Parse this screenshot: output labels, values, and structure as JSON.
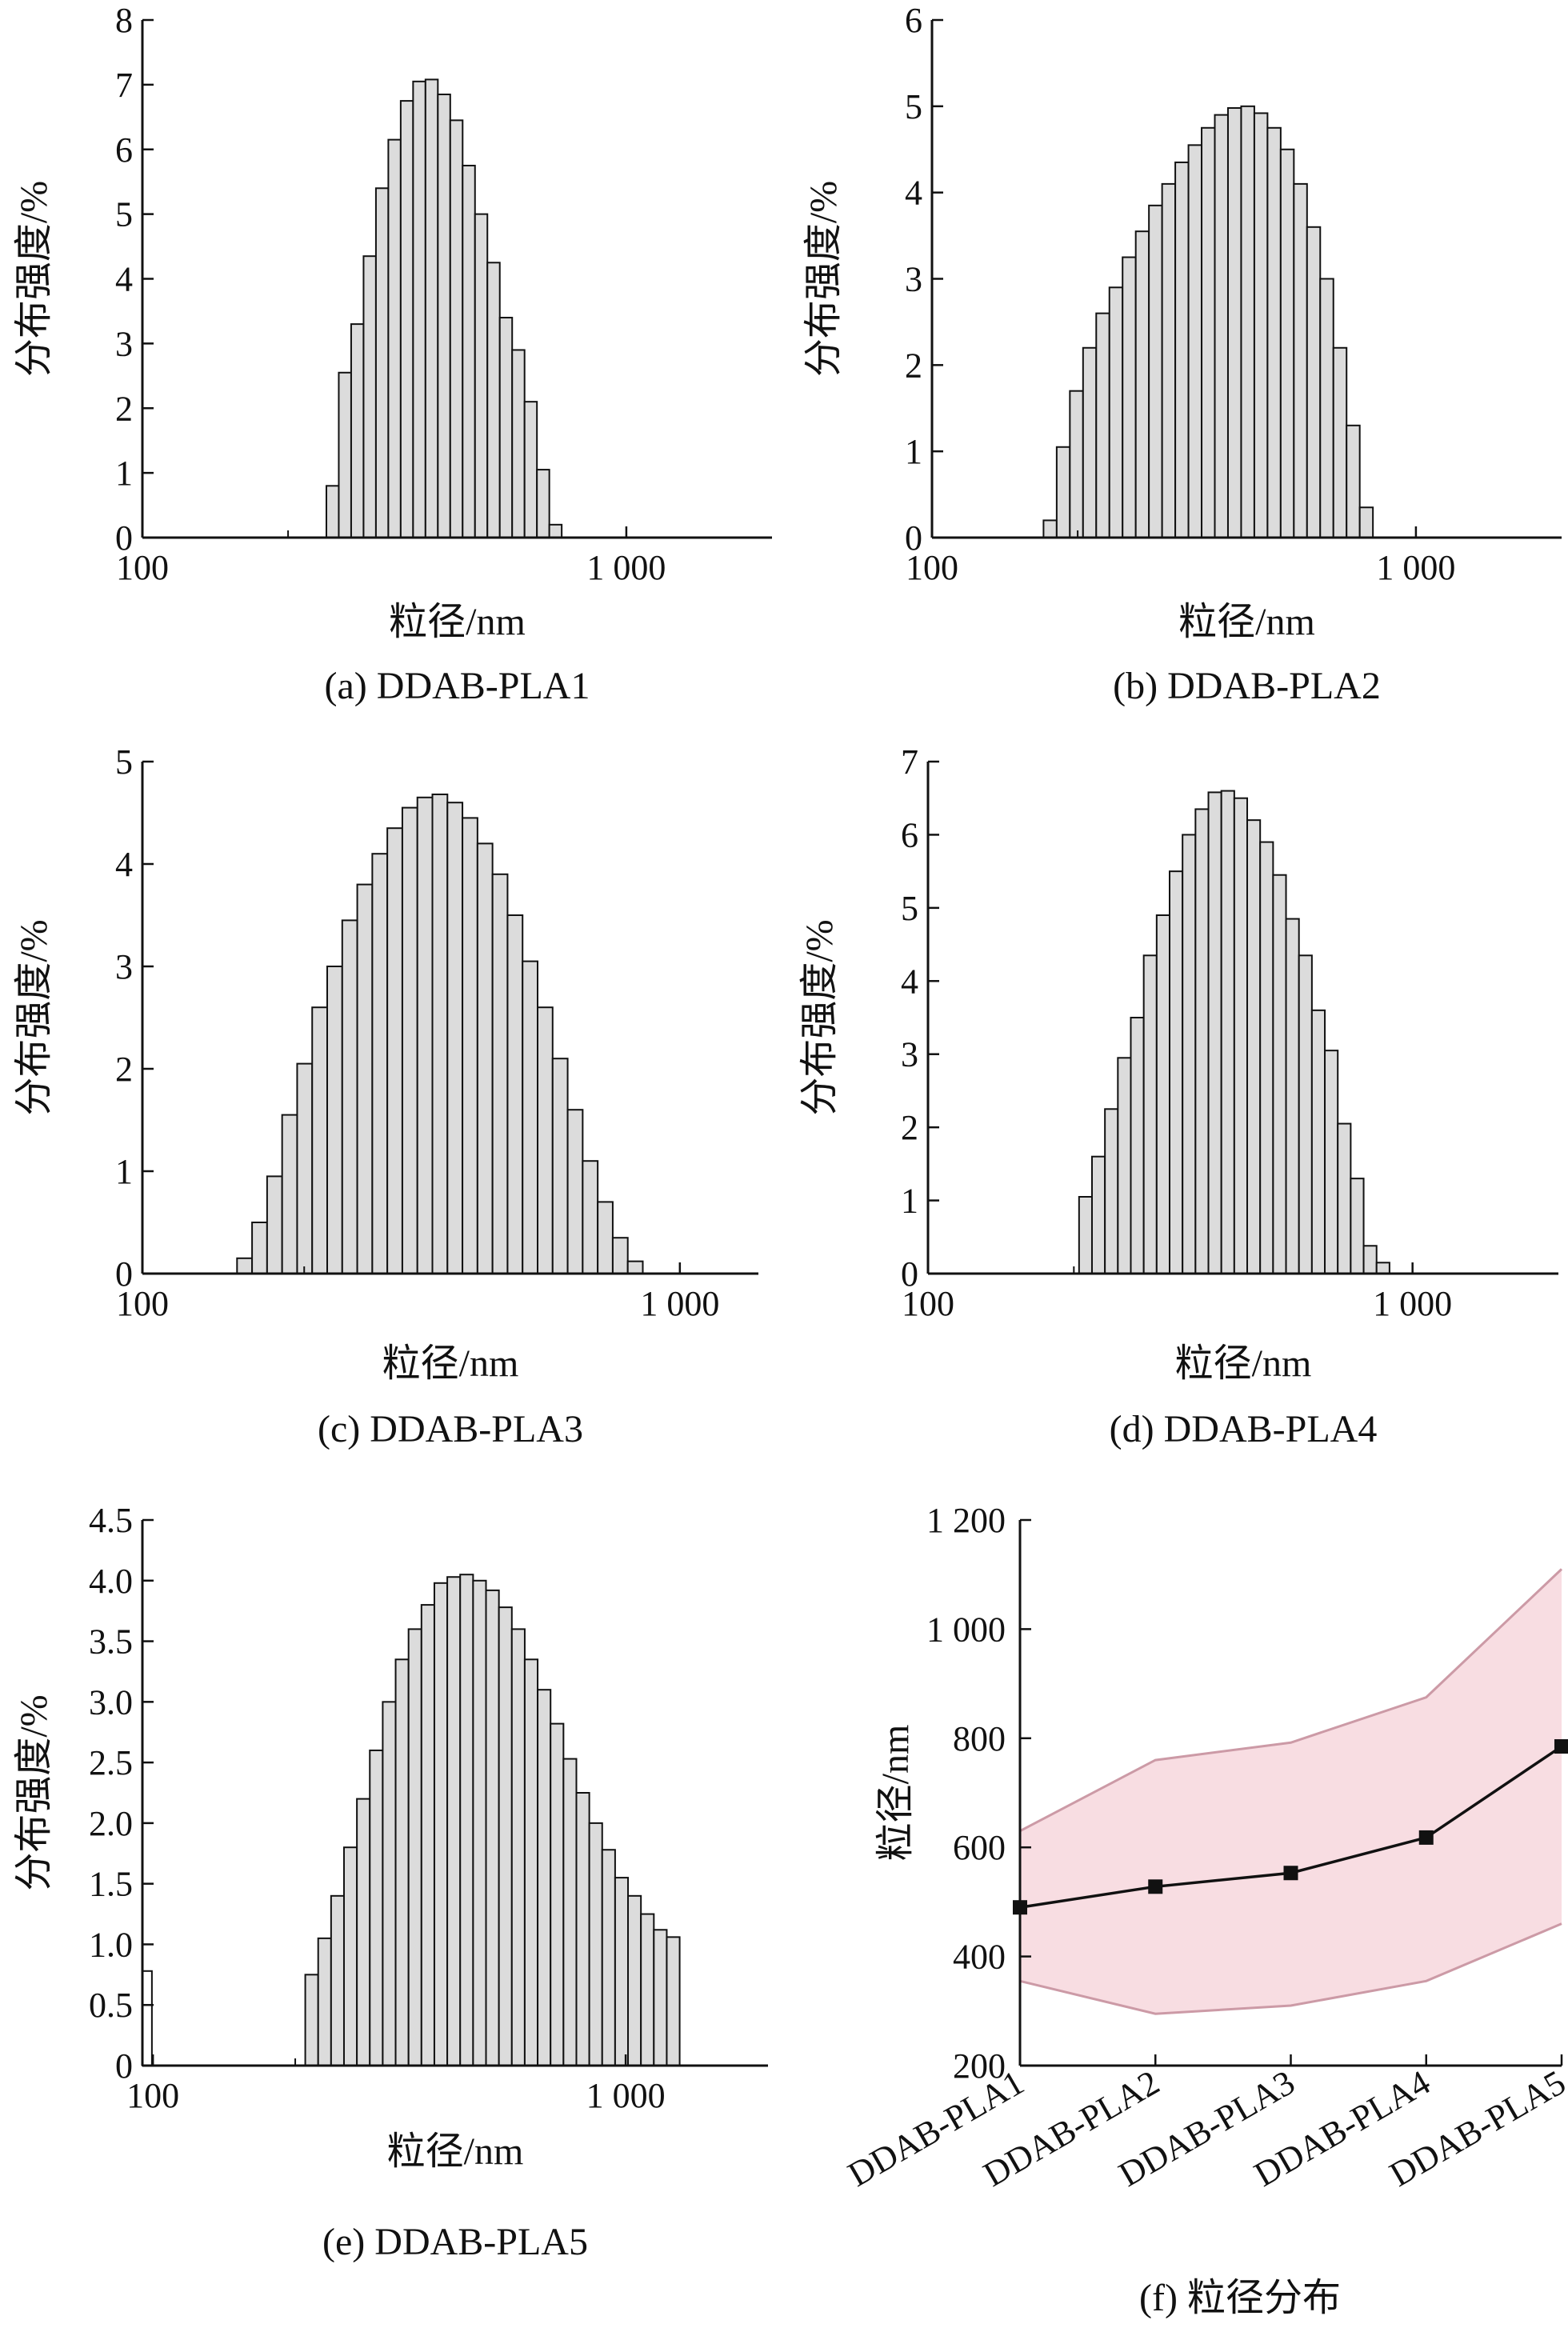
{
  "colors": {
    "bar_fill": "#dcdcdc",
    "bar_stroke": "#111111",
    "band": "#f8dde2",
    "band_edge": "#cc9aa6",
    "line": "#111111"
  },
  "chart_data": [
    {
      "type": "bar",
      "caption": "(a) DDAB-PLA1",
      "xlabel": "粒径/nm",
      "ylabel": "分布强度/%",
      "xscale": "log",
      "xlim": [
        100,
        2000
      ],
      "ylim": [
        0,
        8
      ],
      "xticks": [
        {
          "value": 100,
          "label": "100"
        },
        {
          "value": 1000,
          "label": "1 000"
        }
      ],
      "yticks": [
        {
          "value": 0,
          "label": "0"
        },
        {
          "value": 1,
          "label": "1"
        },
        {
          "value": 2,
          "label": "2"
        },
        {
          "value": 3,
          "label": "3"
        },
        {
          "value": 4,
          "label": "4"
        },
        {
          "value": 5,
          "label": "5"
        },
        {
          "value": 6,
          "label": "6"
        },
        {
          "value": 7,
          "label": "7"
        },
        {
          "value": 8,
          "label": "8"
        }
      ],
      "bin_start": 240,
      "bin_ratio": 1.0607,
      "values": [
        0.8,
        2.55,
        3.3,
        4.35,
        5.4,
        6.15,
        6.75,
        7.05,
        7.08,
        6.85,
        6.45,
        5.75,
        5.0,
        4.25,
        3.4,
        2.9,
        2.1,
        1.05,
        0.2
      ]
    },
    {
      "type": "bar",
      "caption": "(b) DDAB-PLA2",
      "xlabel": "粒径/nm",
      "ylabel": "分布强度/%",
      "xscale": "log",
      "xlim": [
        100,
        2000
      ],
      "ylim": [
        0,
        6
      ],
      "xticks": [
        {
          "value": 100,
          "label": "100"
        },
        {
          "value": 1000,
          "label": "1 000"
        }
      ],
      "yticks": [
        {
          "value": 0,
          "label": "0"
        },
        {
          "value": 1,
          "label": "1"
        },
        {
          "value": 2,
          "label": "2"
        },
        {
          "value": 3,
          "label": "3"
        },
        {
          "value": 4,
          "label": "4"
        },
        {
          "value": 5,
          "label": "5"
        },
        {
          "value": 6,
          "label": "6"
        }
      ],
      "bin_start": 170,
      "bin_ratio": 1.0647,
      "values": [
        0.2,
        1.05,
        1.7,
        2.2,
        2.6,
        2.9,
        3.25,
        3.55,
        3.85,
        4.1,
        4.35,
        4.55,
        4.75,
        4.9,
        4.98,
        5.0,
        4.92,
        4.75,
        4.5,
        4.1,
        3.6,
        3.0,
        2.2,
        1.3,
        0.35
      ]
    },
    {
      "type": "bar",
      "caption": "(c) DDAB-PLA3",
      "xlabel": "粒径/nm",
      "ylabel": "分布强度/%",
      "xscale": "log",
      "xlim": [
        100,
        1400
      ],
      "ylim": [
        0,
        5
      ],
      "xticks": [
        {
          "value": 100,
          "label": "100"
        },
        {
          "value": 1000,
          "label": "1 000"
        }
      ],
      "yticks": [
        {
          "value": 0,
          "label": "0"
        },
        {
          "value": 1,
          "label": "1"
        },
        {
          "value": 2,
          "label": "2"
        },
        {
          "value": 3,
          "label": "3"
        },
        {
          "value": 4,
          "label": "4"
        },
        {
          "value": 5,
          "label": "5"
        }
      ],
      "bin_start": 150,
      "bin_ratio": 1.0665,
      "values": [
        0.15,
        0.5,
        0.95,
        1.55,
        2.05,
        2.6,
        3.0,
        3.45,
        3.8,
        4.1,
        4.35,
        4.55,
        4.65,
        4.68,
        4.6,
        4.45,
        4.2,
        3.9,
        3.5,
        3.05,
        2.6,
        2.1,
        1.6,
        1.1,
        0.7,
        0.35,
        0.12
      ]
    },
    {
      "type": "bar",
      "caption": "(d) DDAB-PLA4",
      "xlabel": "粒径/nm",
      "ylabel": "分布强度/%",
      "xscale": "log",
      "xlim": [
        100,
        2000
      ],
      "ylim": [
        0,
        7
      ],
      "xticks": [
        {
          "value": 100,
          "label": "100"
        },
        {
          "value": 1000,
          "label": "1 000"
        }
      ],
      "yticks": [
        {
          "value": 0,
          "label": "0"
        },
        {
          "value": 1,
          "label": "1"
        },
        {
          "value": 2,
          "label": "2"
        },
        {
          "value": 3,
          "label": "3"
        },
        {
          "value": 4,
          "label": "4"
        },
        {
          "value": 5,
          "label": "5"
        },
        {
          "value": 6,
          "label": "6"
        },
        {
          "value": 7,
          "label": "7"
        }
      ],
      "bin_start": 205,
      "bin_ratio": 1.0634,
      "values": [
        1.05,
        1.6,
        2.25,
        2.95,
        3.5,
        4.35,
        4.9,
        5.5,
        6.0,
        6.35,
        6.58,
        6.6,
        6.5,
        6.2,
        5.9,
        5.45,
        4.85,
        4.35,
        3.6,
        3.05,
        2.05,
        1.3,
        0.38,
        0.15
      ]
    },
    {
      "type": "bar",
      "caption": "(e) DDAB-PLA5",
      "xlabel": "粒径/nm",
      "ylabel": "分布强度/%",
      "xscale": "log",
      "xlim": [
        95,
        2000
      ],
      "ylim": [
        0,
        4.5
      ],
      "xticks": [
        {
          "value": 100,
          "label": "100"
        },
        {
          "value": 1000,
          "label": "1 000"
        }
      ],
      "yticks": [
        {
          "value": 0,
          "label": "0"
        },
        {
          "value": 0.5,
          "label": "0.5"
        },
        {
          "value": 1,
          "label": "1.0"
        },
        {
          "value": 1.5,
          "label": "1.5"
        },
        {
          "value": 2,
          "label": "2.0"
        },
        {
          "value": 2.5,
          "label": "2.5"
        },
        {
          "value": 3,
          "label": "3.0"
        },
        {
          "value": 3.5,
          "label": "3.5"
        },
        {
          "value": 4,
          "label": "4.0"
        },
        {
          "value": 4.5,
          "label": "4.5"
        }
      ],
      "bin_start": 210,
      "bin_ratio": 1.0649,
      "values": [
        0.75,
        1.05,
        1.4,
        1.8,
        2.2,
        2.6,
        3.0,
        3.35,
        3.6,
        3.8,
        3.98,
        4.03,
        4.05,
        4.0,
        3.92,
        3.78,
        3.6,
        3.35,
        3.1,
        2.82,
        2.53,
        2.25,
        2.0,
        1.78,
        1.55,
        1.4,
        1.25,
        1.12,
        1.06
      ],
      "extra_bars": [
        {
          "x_start": 94,
          "x_end": 99.5,
          "value": 0.78
        }
      ]
    },
    {
      "type": "line",
      "caption": "(f) 粒径分布",
      "xlabel": "",
      "ylabel": "粒径/nm",
      "categories": [
        "DDAB-PLA1",
        "DDAB-PLA2",
        "DDAB-PLA3",
        "DDAB-PLA4",
        "DDAB-PLA5"
      ],
      "ylim": [
        200,
        1200
      ],
      "yticks": [
        {
          "value": 200,
          "label": "200"
        },
        {
          "value": 400,
          "label": "400"
        },
        {
          "value": 600,
          "label": "600"
        },
        {
          "value": 800,
          "label": "800"
        },
        {
          "value": 1000,
          "label": "1 000"
        },
        {
          "value": 1200,
          "label": "1 200"
        }
      ],
      "values": [
        490,
        528,
        553,
        618,
        785
      ],
      "band_upper": [
        630,
        760,
        792,
        875,
        1110
      ],
      "band_lower": [
        355,
        295,
        310,
        355,
        460
      ]
    }
  ]
}
